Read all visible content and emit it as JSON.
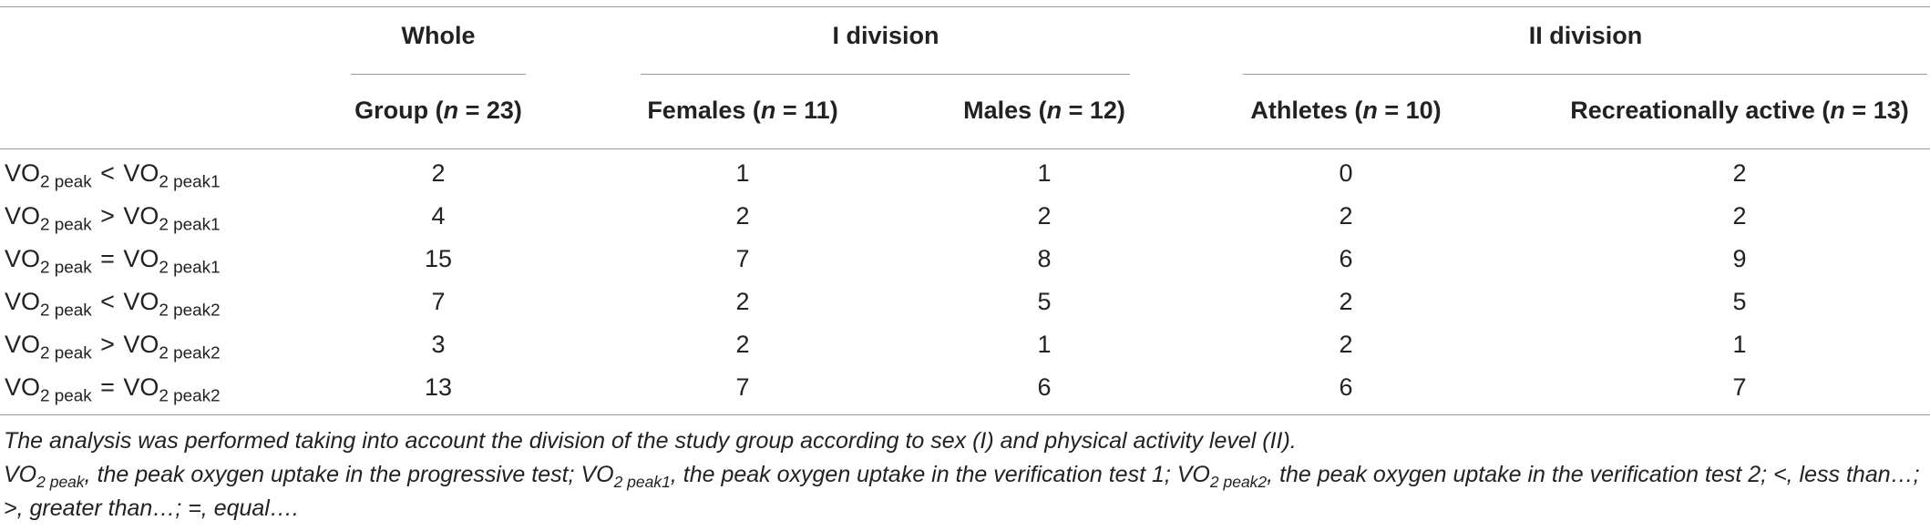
{
  "groups": [
    "Whole",
    "I division",
    "II division"
  ],
  "columns": [
    {
      "pre": "Group (",
      "var": "n",
      "post": " = 23)"
    },
    {
      "pre": "Females (",
      "var": "n",
      "post": " = 11)"
    },
    {
      "pre": "Males (",
      "var": "n",
      "post": " = 12)"
    },
    {
      "pre": "Athletes (",
      "var": "n",
      "post": " = 10)"
    },
    {
      "pre": "Recreationally active (",
      "var": "n",
      "post": " = 13)"
    }
  ],
  "rows": [
    {
      "label": {
        "a": "VO",
        "a_sub": "2 peak",
        "op": "<",
        "b": "VO",
        "b_sub": "2 peak1"
      },
      "values": [
        2,
        1,
        1,
        0,
        2
      ]
    },
    {
      "label": {
        "a": "VO",
        "a_sub": "2 peak",
        "op": ">",
        "b": "VO",
        "b_sub": "2 peak1"
      },
      "values": [
        4,
        2,
        2,
        2,
        2
      ]
    },
    {
      "label": {
        "a": "VO",
        "a_sub": "2 peak",
        "op": "=",
        "b": "VO",
        "b_sub": "2 peak1"
      },
      "values": [
        15,
        7,
        8,
        6,
        9
      ]
    },
    {
      "label": {
        "a": "VO",
        "a_sub": "2 peak",
        "op": "<",
        "b": "VO",
        "b_sub": "2 peak2"
      },
      "values": [
        7,
        2,
        5,
        2,
        5
      ]
    },
    {
      "label": {
        "a": "VO",
        "a_sub": "2 peak",
        "op": ">",
        "b": "VO",
        "b_sub": "2 peak2"
      },
      "values": [
        3,
        2,
        1,
        2,
        1
      ]
    },
    {
      "label": {
        "a": "VO",
        "a_sub": "2 peak",
        "op": "=",
        "b": "VO",
        "b_sub": "2 peak2"
      },
      "values": [
        13,
        7,
        6,
        6,
        7
      ]
    }
  ],
  "footnote": {
    "line1": "The analysis was performed taking into account the division of the study group according to sex (I) and physical activity level (II).",
    "line2": [
      {
        "text": "VO"
      },
      {
        "sub": "2 peak"
      },
      {
        "text": ", the peak oxygen uptake in the progressive test; VO"
      },
      {
        "sub": "2 peak1"
      },
      {
        "text": ", the peak oxygen uptake in the verification test 1; VO"
      },
      {
        "sub": "2 peak2"
      },
      {
        "text": ", the peak oxygen uptake in the verification test 2; <, less than…; >, greater than…; =, equal…."
      }
    ]
  }
}
